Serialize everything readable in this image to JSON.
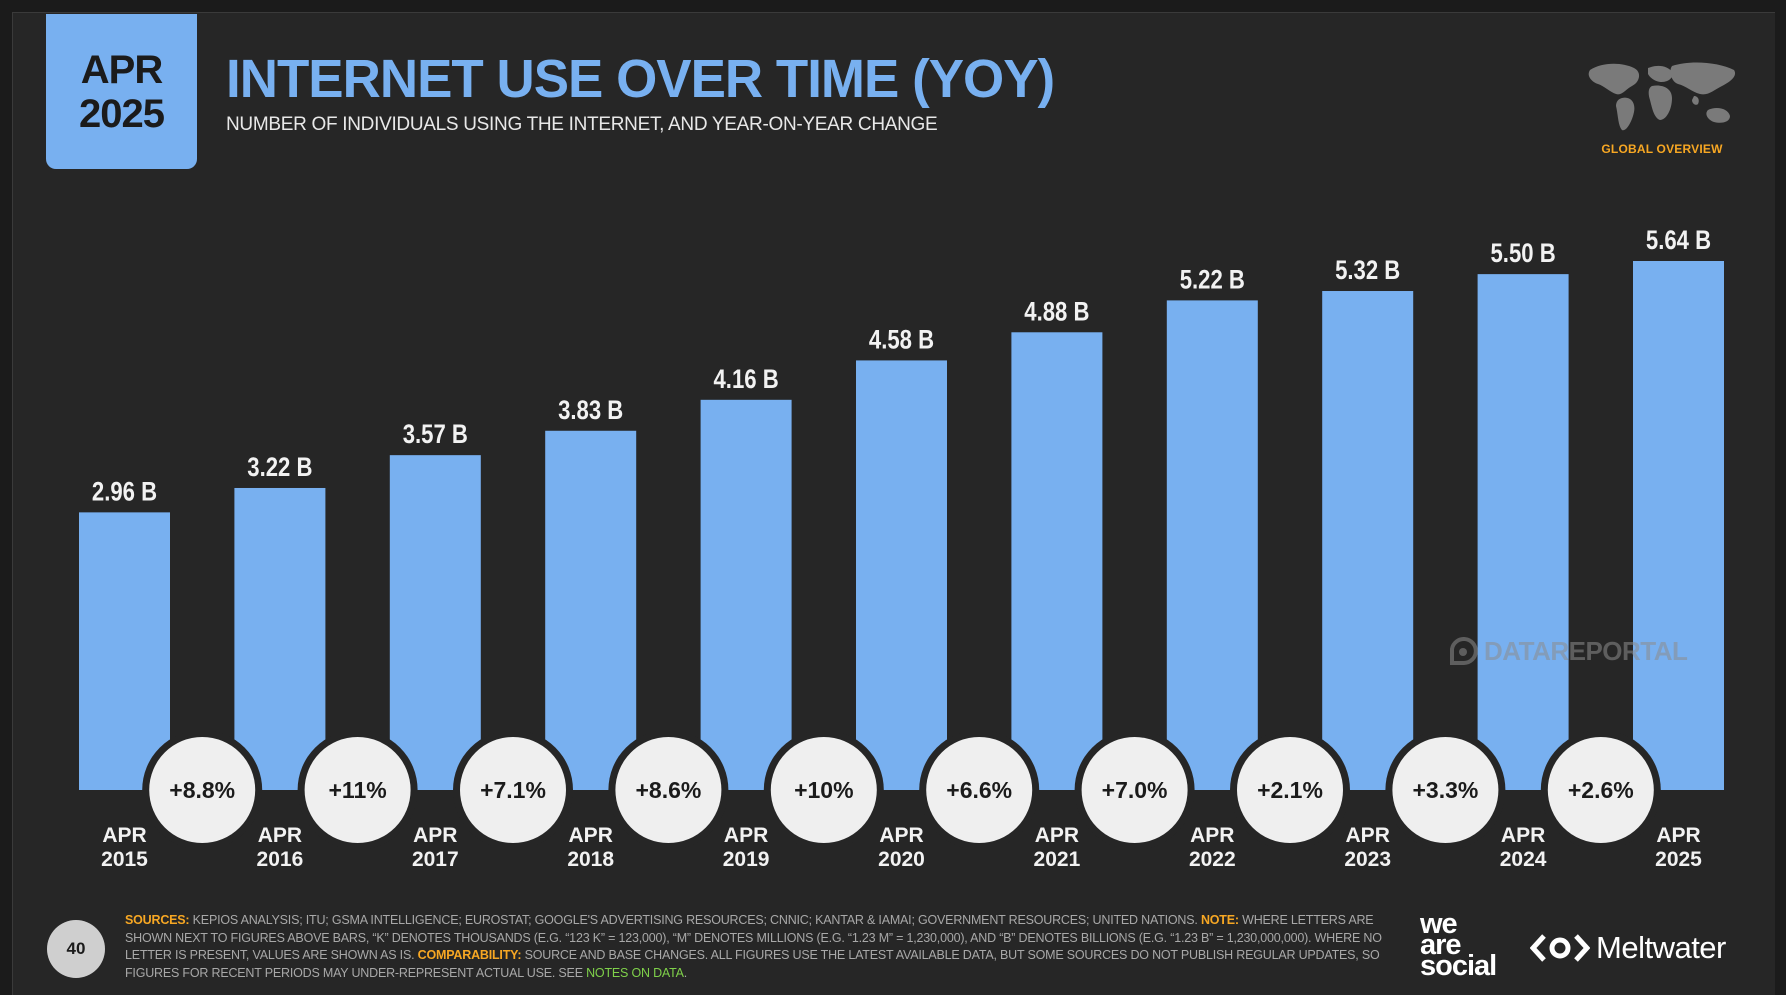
{
  "header": {
    "badge_month": "APR",
    "badge_year": "2025",
    "title": "INTERNET USE OVER TIME (YOY)",
    "subtitle": "NUMBER OF INDIVIDUALS USING THE INTERNET, AND YEAR-ON-YEAR CHANGE",
    "section_label": "GLOBAL OVERVIEW",
    "globe_icon": "world-map-icon"
  },
  "colors": {
    "bar": "#78b0f0",
    "accent": "#78b0f0",
    "section": "#f7a723",
    "background": "#262626",
    "circle": "#efefef"
  },
  "chart_data": {
    "type": "bar",
    "categories": [
      "APR 2015",
      "APR 2016",
      "APR 2017",
      "APR 2018",
      "APR 2019",
      "APR 2020",
      "APR 2021",
      "APR 2022",
      "APR 2023",
      "APR 2024",
      "APR 2025"
    ],
    "category_lines": [
      [
        "APR",
        "2015"
      ],
      [
        "APR",
        "2016"
      ],
      [
        "APR",
        "2017"
      ],
      [
        "APR",
        "2018"
      ],
      [
        "APR",
        "2019"
      ],
      [
        "APR",
        "2020"
      ],
      [
        "APR",
        "2021"
      ],
      [
        "APR",
        "2022"
      ],
      [
        "APR",
        "2023"
      ],
      [
        "APR",
        "2024"
      ],
      [
        "APR",
        "2025"
      ]
    ],
    "values": [
      2.96,
      3.22,
      3.57,
      3.83,
      4.16,
      4.58,
      4.88,
      5.22,
      5.32,
      5.5,
      5.64
    ],
    "value_labels": [
      "2.96 B",
      "3.22 B",
      "3.57 B",
      "3.83 B",
      "4.16 B",
      "4.58 B",
      "4.88 B",
      "5.22 B",
      "5.32 B",
      "5.50 B",
      "5.64 B"
    ],
    "yoy_change_labels": [
      "+8.8%",
      "+11%",
      "+7.1%",
      "+8.6%",
      "+10%",
      "+6.6%",
      "+7.0%",
      "+2.1%",
      "+3.3%",
      "+2.6%"
    ],
    "unit": "B",
    "ylim": [
      0,
      5.64
    ]
  },
  "watermark": {
    "text": "DATAREPORTAL",
    "icon": "datareportal-icon"
  },
  "footer": {
    "page_number": "40",
    "sources_label": "SOURCES:",
    "sources_text": " KEPIOS ANALYSIS; ITU; GSMA INTELLIGENCE; EUROSTAT; GOOGLE'S ADVERTISING RESOURCES; CNNIC; KANTAR & IAMAI; GOVERNMENT RESOURCES; UNITED NATIONS. ",
    "note_label": "NOTE:",
    "note_text": " WHERE LETTERS ARE SHOWN NEXT TO FIGURES ABOVE BARS, “K” DENOTES THOUSANDS (E.G. “123 K” = 123,000), “M” DENOTES MILLIONS (E.G. “1.23 M” = 1,230,000), AND “B” DENOTES BILLIONS (E.G. “1.23 B” = 1,230,000,000). WHERE NO LETTER IS PRESENT, VALUES ARE SHOWN AS IS. ",
    "comparability_label": "COMPARABILITY:",
    "comparability_text": " SOURCE AND BASE CHANGES. ALL FIGURES USE THE LATEST AVAILABLE DATA, BUT SOME SOURCES DO NOT PUBLISH REGULAR UPDATES, SO FIGURES FOR RECENT PERIODS MAY UNDER-REPRESENT ACTUAL USE. SEE ",
    "notes_link": "NOTES ON DATA",
    "notes_end": ".",
    "logo_we": "we",
    "logo_are": "are",
    "logo_social": "social",
    "meltwater_text": "Meltwater",
    "meltwater_icon": "meltwater-icon"
  }
}
